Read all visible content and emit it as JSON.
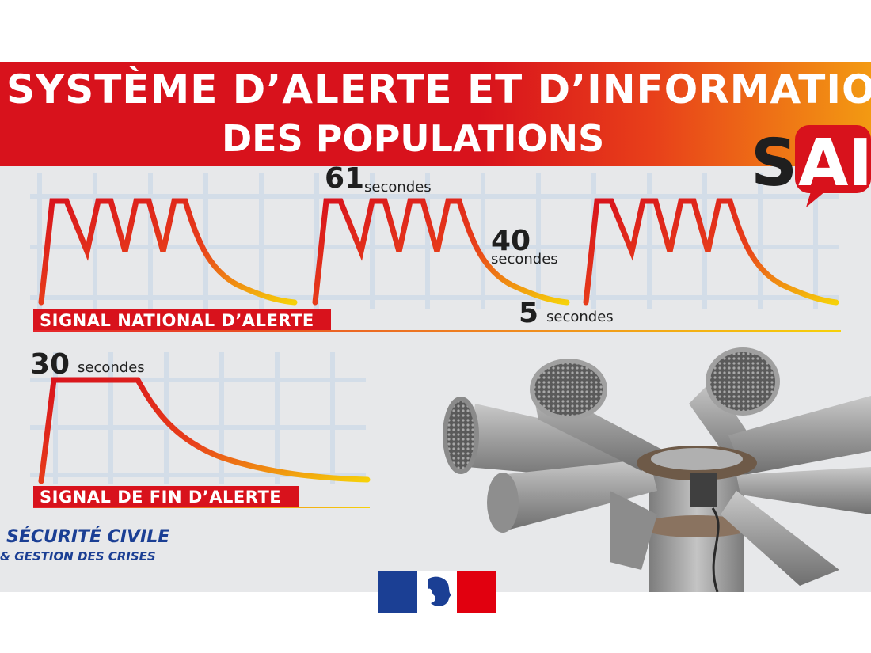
{
  "title": {
    "line1": "SYSTÈME D’ALERTE ET D’INFORMATION",
    "line2": "DES POPULATIONS"
  },
  "logo": {
    "saip_letter_s": "S",
    "saip_letters_ai": "AI",
    "securite_civile_line1": "SÉCURITÉ CIVILE",
    "securite_civile_line2": "& GESTION DES CRISES"
  },
  "national_signal": {
    "label": "SIGNAL NATIONAL D’ALERTE",
    "duration_61": {
      "value": "61",
      "unit": "secondes"
    },
    "duration_40": {
      "value": "40",
      "unit": "secondes"
    },
    "duration_5": {
      "value": "5",
      "unit": "secondes"
    }
  },
  "end_signal": {
    "label": "SIGNAL DE FIN D’ALERTE",
    "duration_30": {
      "value": "30",
      "unit": "secondes"
    }
  },
  "colors": {
    "red": "#d8121c",
    "orange": "#f39a12",
    "yellow": "#f6d10a",
    "blue": "#1b3f94",
    "grid": "#d3dde8",
    "text": "#1f1f1f"
  }
}
